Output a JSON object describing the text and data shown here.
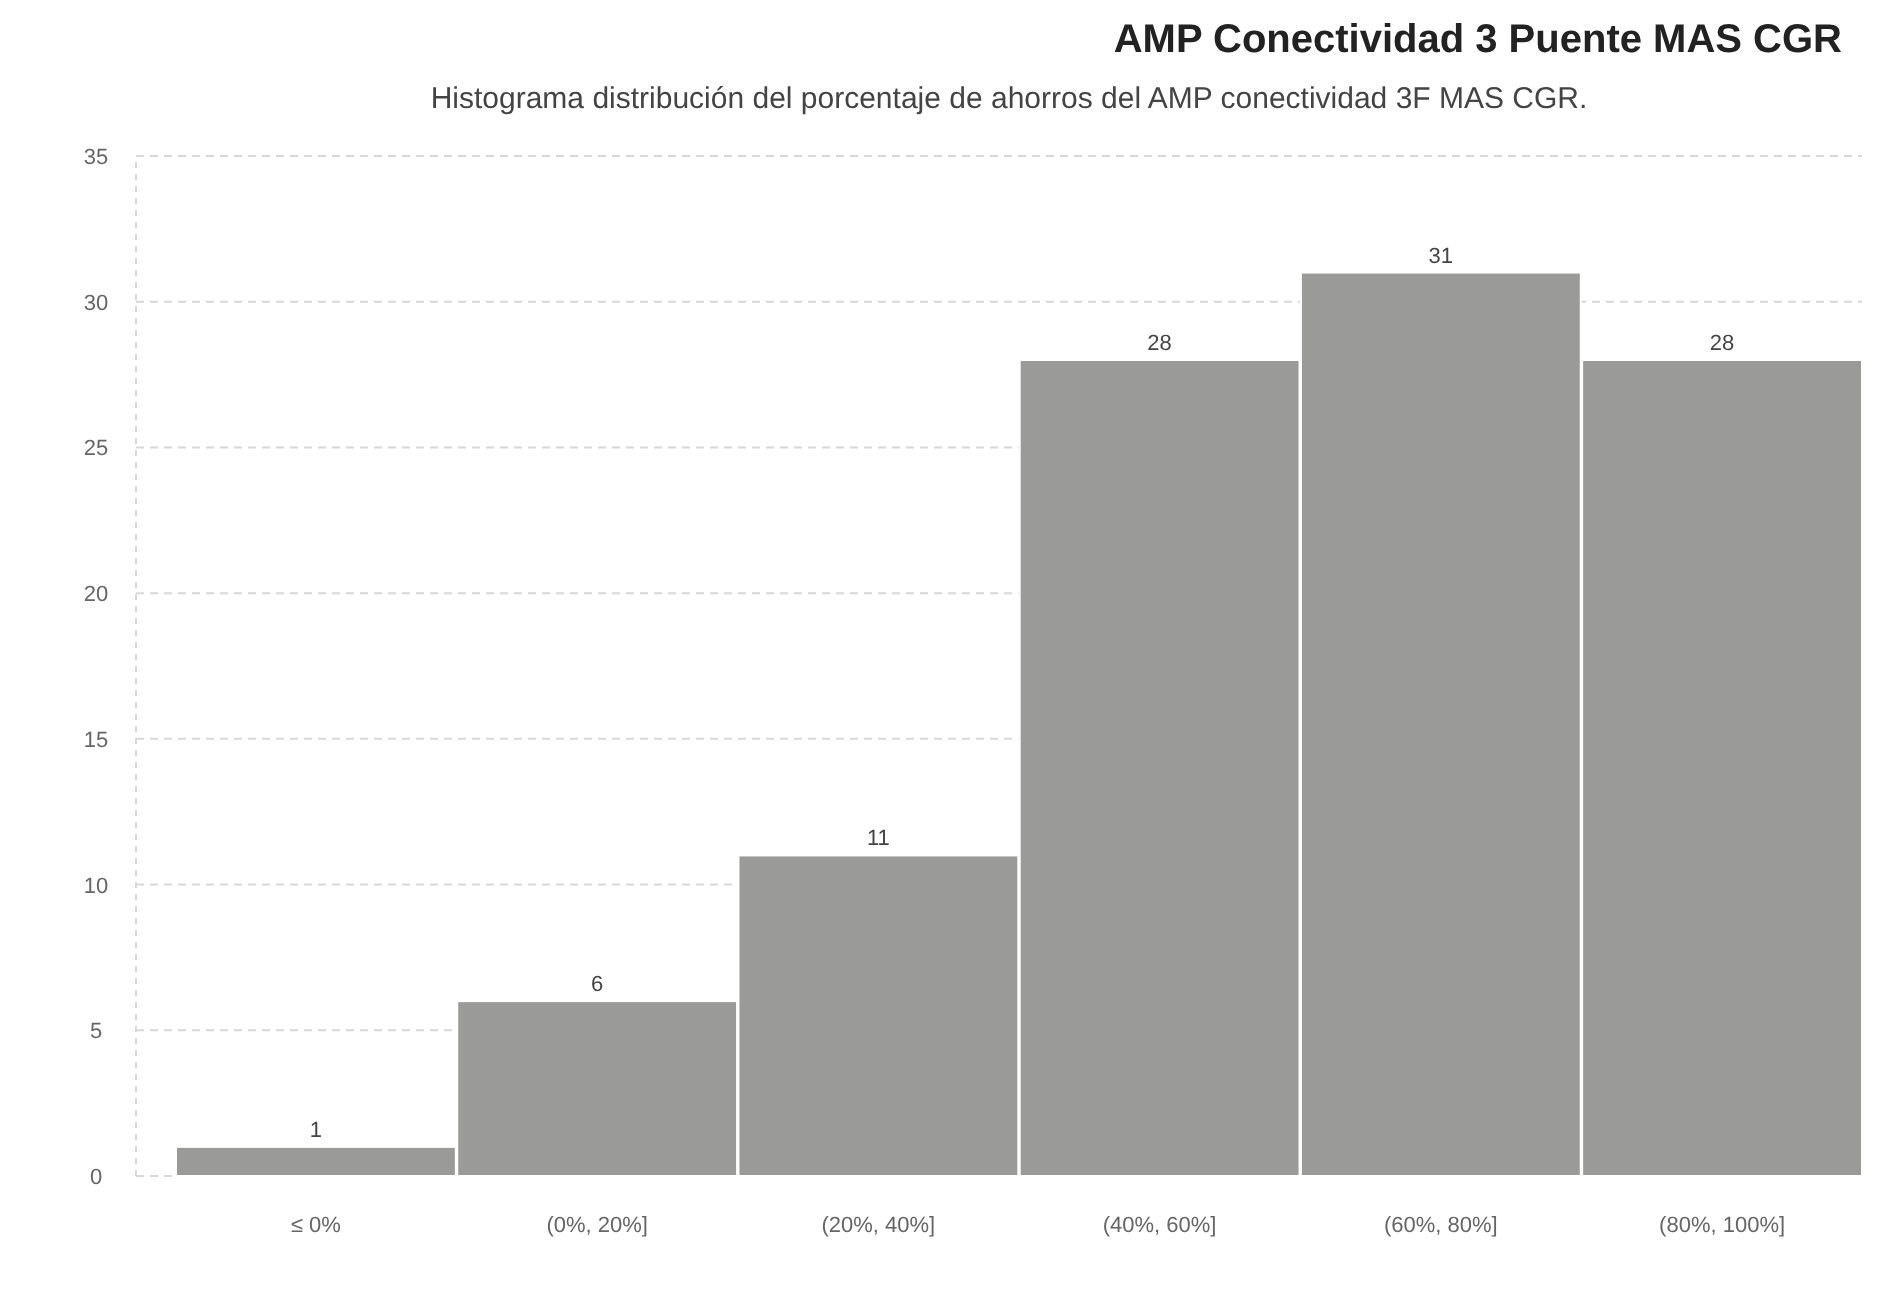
{
  "chart_data": {
    "type": "bar",
    "title": "AMP Conectividad 3 Puente MAS CGR",
    "subtitle": "Histograma distribución del porcentaje de ahorros del AMP conectividad 3F MAS CGR.",
    "categories": [
      "≤ 0%",
      "(0%, 20%]",
      "(20%, 40%]",
      "(40%, 60%]",
      "(60%, 80%]",
      "(80%, 100%]"
    ],
    "values": [
      1,
      6,
      11,
      28,
      31,
      28
    ],
    "color": "#9a9a98",
    "ylim": [
      0,
      35
    ],
    "yticks": [
      0,
      5,
      10,
      15,
      20,
      25,
      30,
      35
    ],
    "grid": "y",
    "data_labels": true
  }
}
